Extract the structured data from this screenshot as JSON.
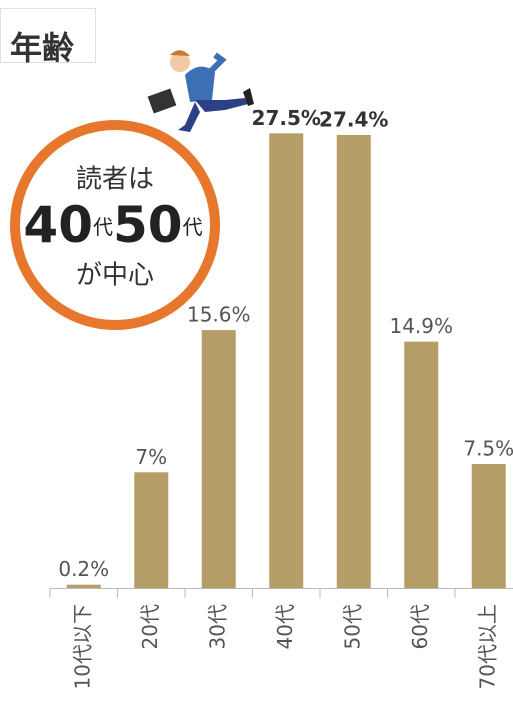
{
  "chart_data": {
    "type": "bar",
    "title": "年齢",
    "categories": [
      "10代以下",
      "20代",
      "30代",
      "40代",
      "50代",
      "60代",
      "70代以上"
    ],
    "values": [
      0.2,
      7,
      15.6,
      27.5,
      27.4,
      14.9,
      7.5
    ],
    "value_labels": [
      "0.2%",
      "7%",
      "15.6%",
      "27.5%",
      "27.4%",
      "14.9%",
      "7.5%"
    ],
    "color": "#b59d67",
    "ylim": [
      0,
      30
    ],
    "annotation": {
      "line1": "読者は",
      "num1": "40",
      "unit1": "代",
      "num2": "50",
      "unit2": "代",
      "line3": "が中心"
    }
  }
}
